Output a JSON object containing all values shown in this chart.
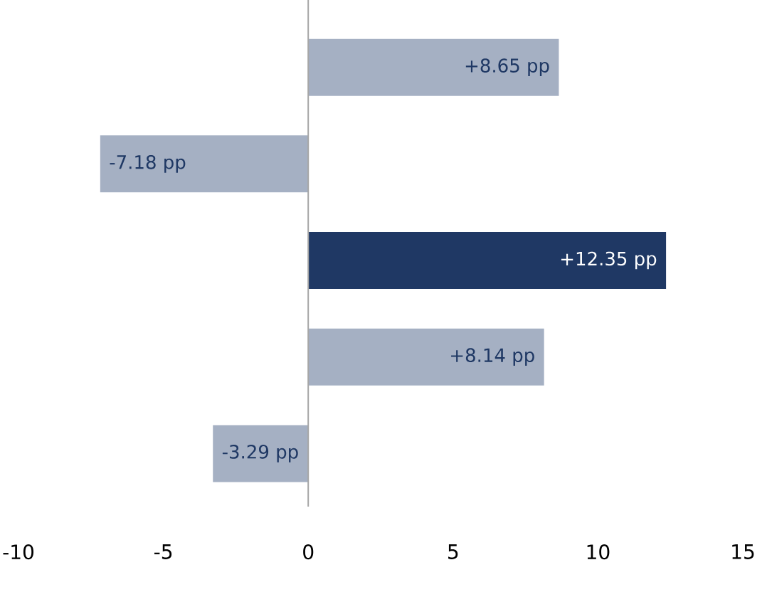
{
  "chart_data": {
    "type": "bar",
    "orientation": "horizontal",
    "categories": [
      null,
      null,
      null,
      null,
      null
    ],
    "values": [
      8.65,
      -7.18,
      12.35,
      8.14,
      -3.29
    ],
    "colors": [
      "#a5b0c3",
      "#a5b0c3",
      "#1f3864",
      "#a5b0c3",
      "#a5b0c3"
    ],
    "value_labels": [
      "+8.65 pp",
      "-7.18 pp",
      "+12.35 pp",
      "+8.14 pp",
      "-3.29 pp"
    ],
    "xlim": [
      -10,
      15
    ],
    "xticks": [
      -10,
      -5,
      0,
      5,
      10,
      15
    ]
  }
}
